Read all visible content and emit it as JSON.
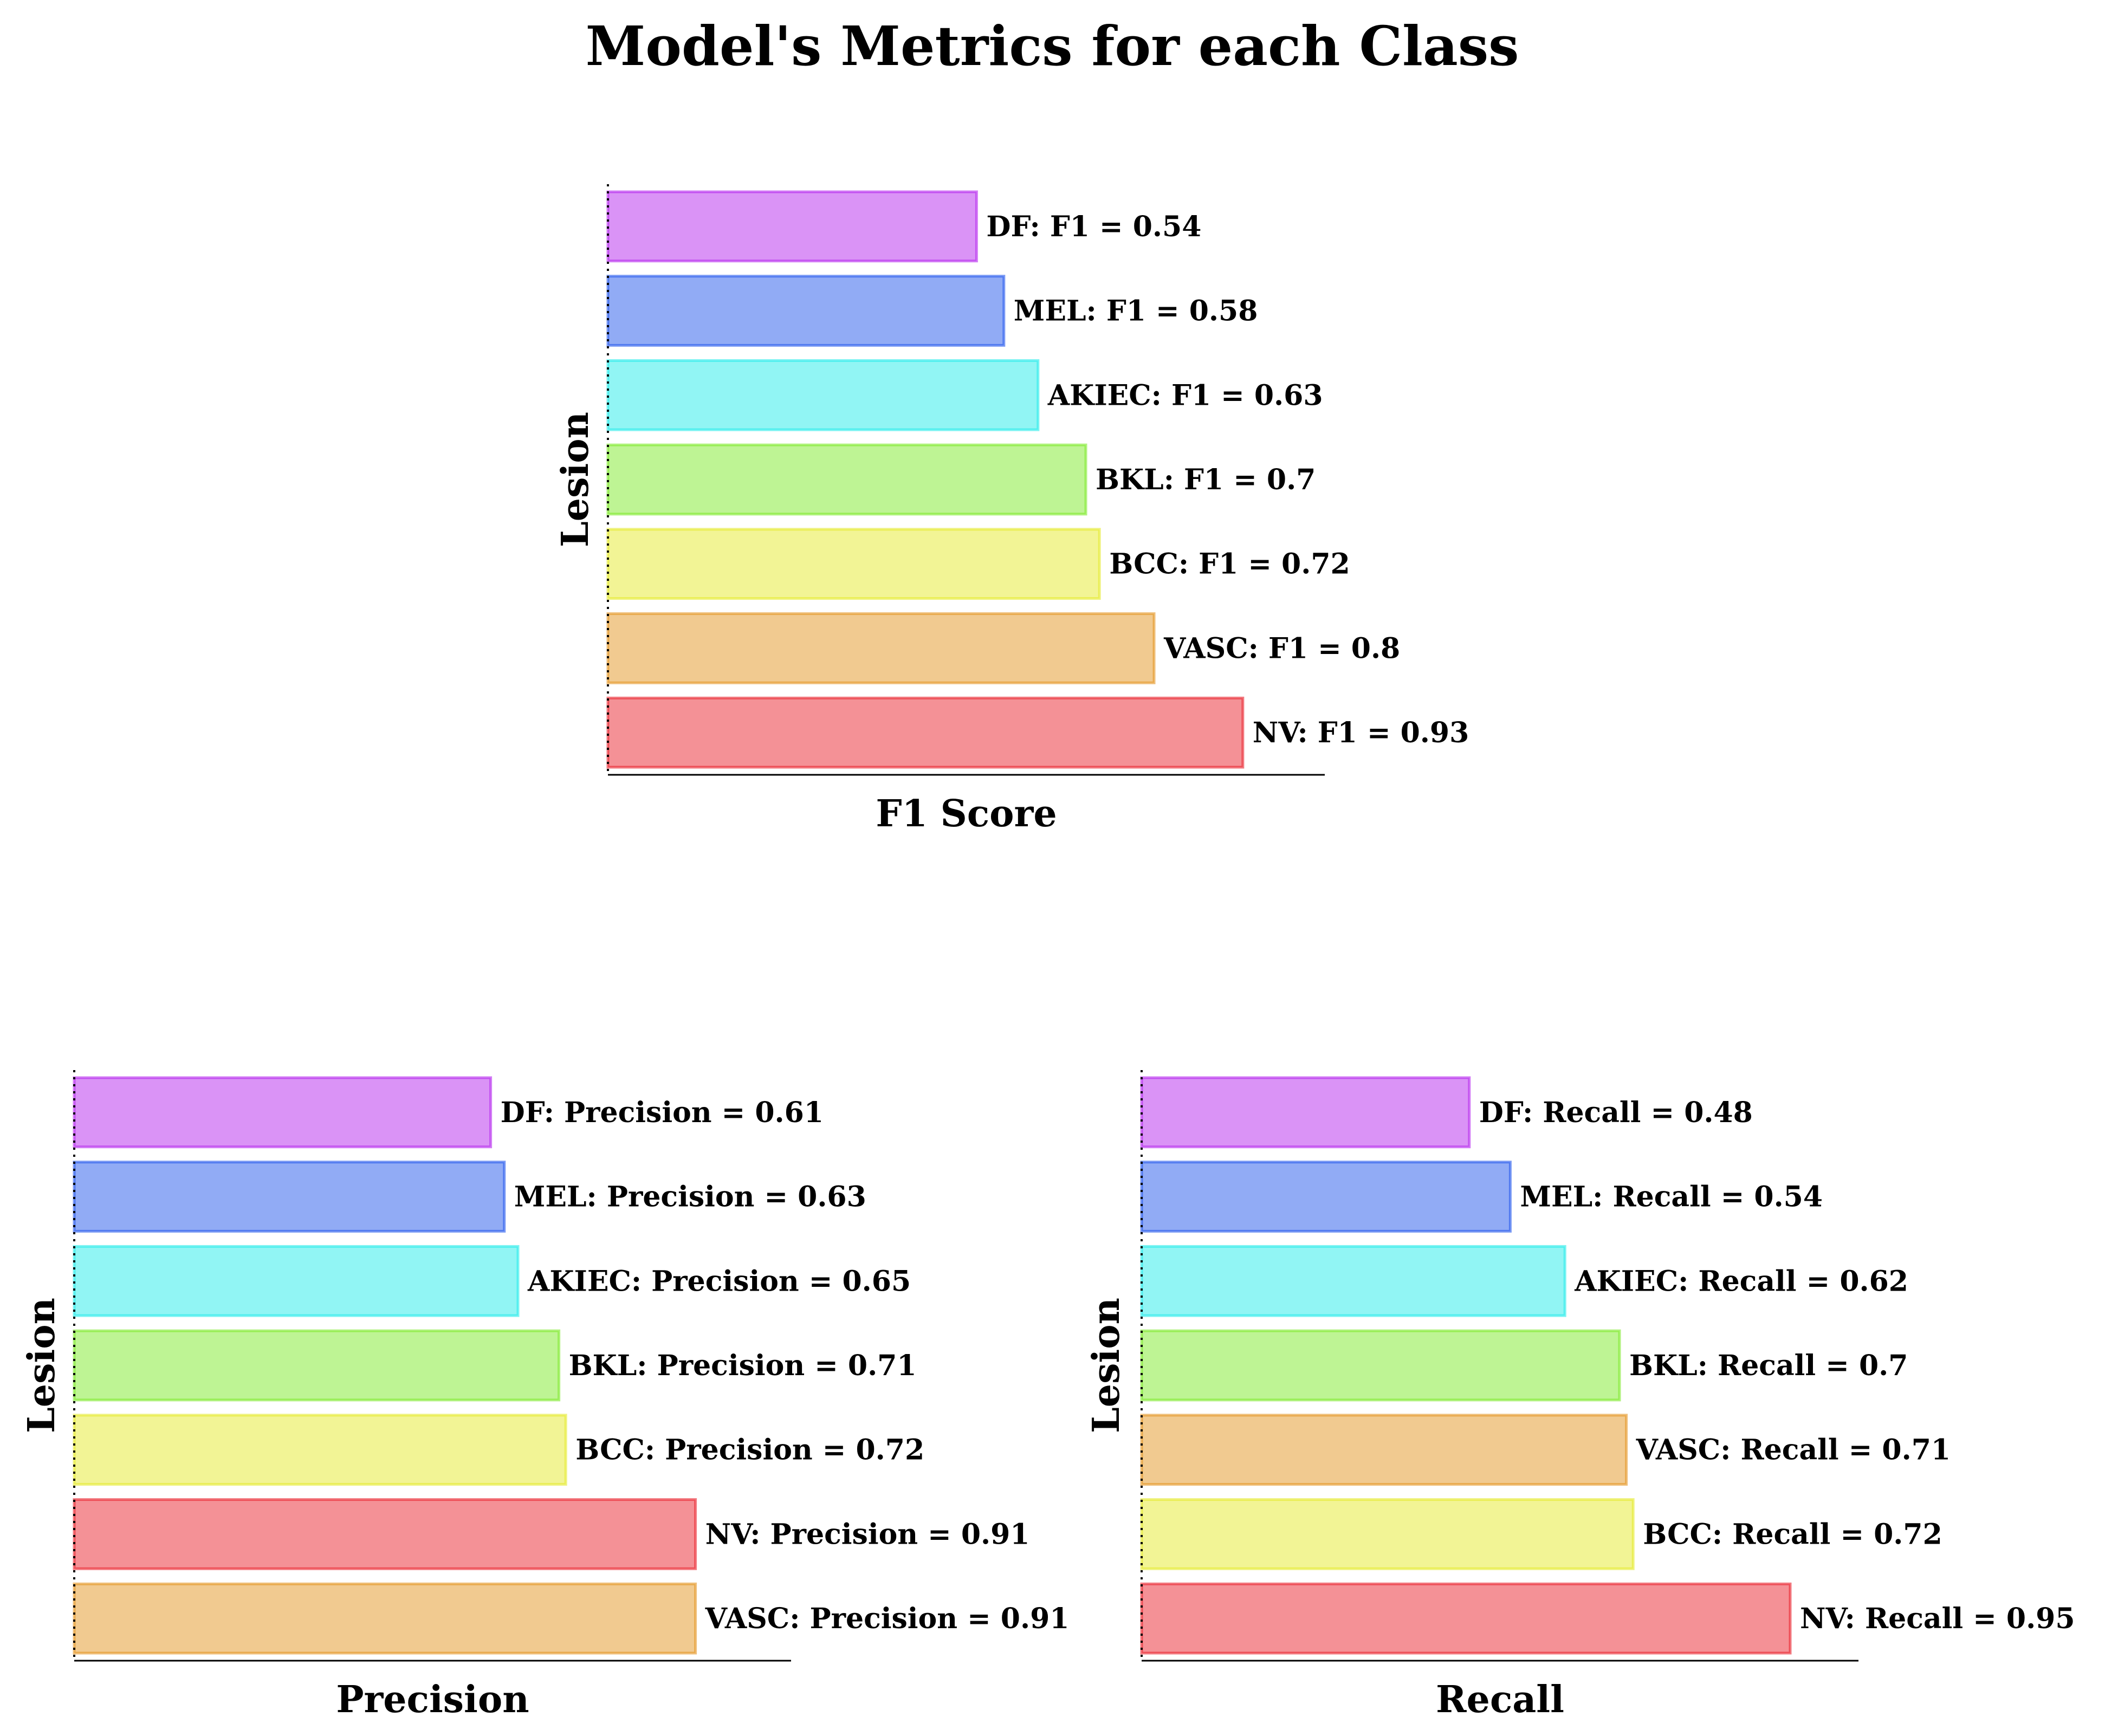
{
  "title": "Model's Metrics for each Class",
  "colors": {
    "NV": "#e9232d",
    "VASC": "#e49521",
    "BCC": "#e5ea2c",
    "BKL": "#7dea2a",
    "AKIEC": "#24ebe9",
    "MEL": "#2458ec",
    "DF": "#b527ee"
  },
  "chart_data": [
    {
      "type": "bar",
      "orientation": "horizontal",
      "metric": "F1",
      "xlabel": "F1 Score",
      "ylabel": "Lesion",
      "xlim": [
        0,
        1.05
      ],
      "categories": [
        "NV",
        "VASC",
        "BCC",
        "BKL",
        "AKIEC",
        "MEL",
        "DF"
      ],
      "values": [
        0.93,
        0.8,
        0.72,
        0.7,
        0.63,
        0.58,
        0.54
      ],
      "labels": [
        "NV: F1 = 0.93",
        "VASC: F1 = 0.8",
        "BCC: F1 = 0.72",
        "BKL: F1 = 0.7",
        "AKIEC: F1 = 0.63",
        "MEL: F1 = 0.58",
        "DF: F1 = 0.54"
      ]
    },
    {
      "type": "bar",
      "orientation": "horizontal",
      "metric": "Precision",
      "xlabel": "Precision",
      "ylabel": "Lesion",
      "xlim": [
        0,
        1.05
      ],
      "categories": [
        "VASC",
        "NV",
        "BCC",
        "BKL",
        "AKIEC",
        "MEL",
        "DF"
      ],
      "values": [
        0.91,
        0.91,
        0.72,
        0.71,
        0.65,
        0.63,
        0.61
      ],
      "labels": [
        "VASC: Precision = 0.91",
        "NV: Precision = 0.91",
        "BCC: Precision = 0.72",
        "BKL: Precision = 0.71",
        "AKIEC: Precision = 0.65",
        "MEL: Precision = 0.63",
        "DF: Precision = 0.61"
      ]
    },
    {
      "type": "bar",
      "orientation": "horizontal",
      "metric": "Recall",
      "xlabel": "Recall",
      "ylabel": "Lesion",
      "xlim": [
        0,
        1.05
      ],
      "categories": [
        "NV",
        "BCC",
        "VASC",
        "BKL",
        "AKIEC",
        "MEL",
        "DF"
      ],
      "values": [
        0.95,
        0.72,
        0.71,
        0.7,
        0.62,
        0.54,
        0.48
      ],
      "labels": [
        "NV: Recall = 0.95",
        "BCC: Recall = 0.72",
        "VASC: Recall = 0.71",
        "BKL: Recall = 0.7",
        "AKIEC: Recall = 0.62",
        "MEL: Recall = 0.54",
        "DF: Recall = 0.48"
      ]
    }
  ]
}
